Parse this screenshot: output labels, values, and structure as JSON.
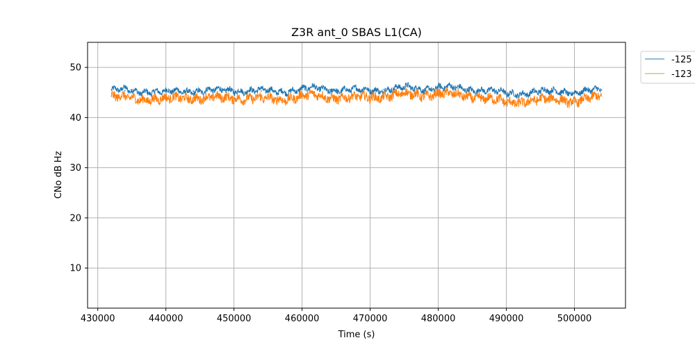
{
  "chart_data": {
    "type": "line",
    "title": "Z3R ant_0 SBAS L1(CA)",
    "xlabel": "Time (s)",
    "ylabel": "CNo dB Hz",
    "xlim": [
      428500,
      507500
    ],
    "ylim": [
      2,
      55
    ],
    "xticks": [
      430000,
      440000,
      450000,
      460000,
      470000,
      480000,
      490000,
      500000
    ],
    "yticks": [
      10,
      20,
      30,
      40,
      50
    ],
    "grid": true,
    "legend_position": "outside-top-right",
    "series": [
      {
        "name": "-125",
        "color": "#1f77b4",
        "x": [
          432000,
          434000,
          436000,
          438000,
          440000,
          442000,
          444000,
          446000,
          448000,
          450000,
          452000,
          454000,
          456000,
          458000,
          460000,
          462000,
          464000,
          466000,
          468000,
          470000,
          472000,
          474000,
          476000,
          478000,
          480000,
          482000,
          484000,
          486000,
          488000,
          490000,
          492000,
          494000,
          496000,
          498000,
          500000,
          502000,
          504000
        ],
        "y": [
          45.5,
          45.4,
          45.2,
          45.3,
          45.0,
          45.2,
          45.3,
          45.4,
          45.3,
          45.5,
          45.4,
          45.3,
          45.2,
          45.4,
          45.6,
          45.8,
          45.6,
          45.5,
          45.4,
          45.5,
          45.6,
          45.8,
          45.9,
          45.8,
          46.0,
          45.9,
          45.7,
          45.6,
          45.2,
          44.8,
          44.9,
          45.0,
          45.2,
          45.3,
          45.0,
          45.2,
          45.5
        ]
      },
      {
        "name": "-123",
        "color": "#ff7f0e",
        "x": [
          432000,
          434000,
          436000,
          438000,
          440000,
          442000,
          444000,
          446000,
          448000,
          450000,
          452000,
          454000,
          456000,
          458000,
          460000,
          462000,
          464000,
          466000,
          468000,
          470000,
          472000,
          474000,
          476000,
          478000,
          480000,
          482000,
          484000,
          486000,
          488000,
          490000,
          492000,
          494000,
          496000,
          498000,
          500000,
          502000,
          504000
        ],
        "y": [
          44.2,
          43.9,
          43.7,
          43.8,
          43.6,
          43.9,
          44.0,
          43.9,
          43.8,
          44.0,
          43.9,
          43.7,
          43.6,
          43.9,
          44.2,
          44.4,
          44.1,
          44.0,
          43.9,
          44.1,
          44.3,
          44.5,
          44.6,
          44.5,
          44.8,
          44.5,
          44.3,
          44.1,
          43.5,
          43.0,
          43.2,
          43.4,
          43.5,
          43.7,
          43.2,
          43.6,
          44.3
        ]
      }
    ],
    "legend_line_color": "#c8a24a"
  }
}
